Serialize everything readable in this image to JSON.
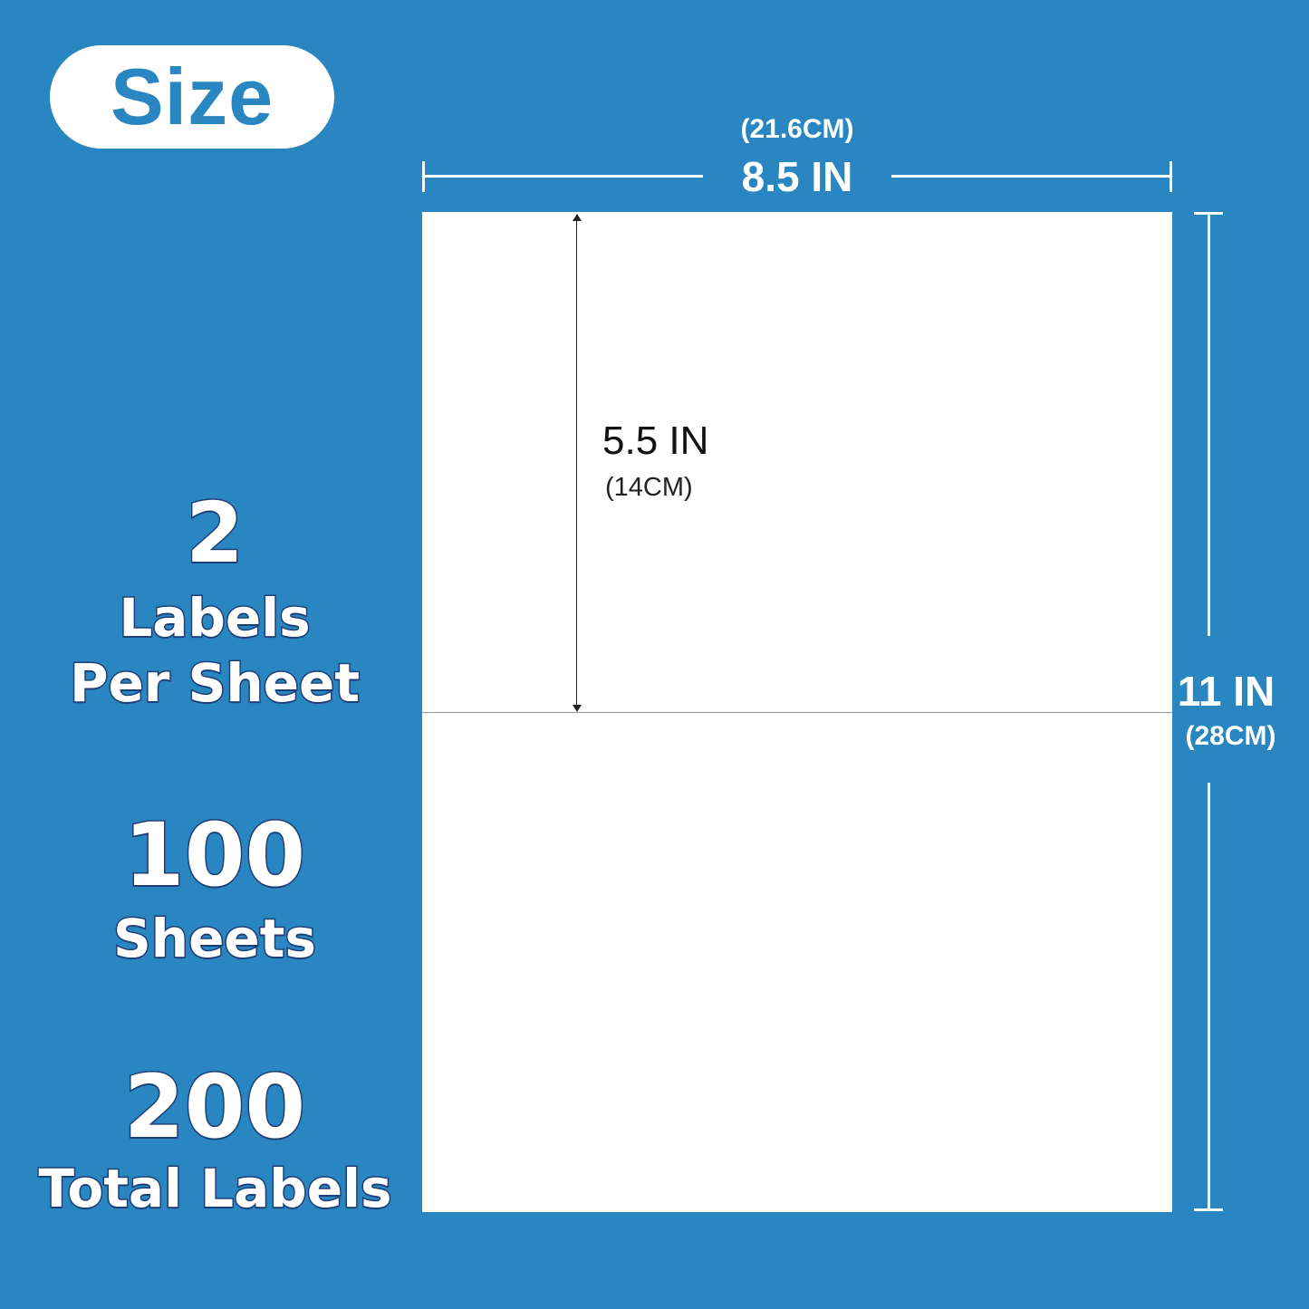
{
  "title": "Size",
  "width": {
    "inches": "8.5 IN",
    "cm": "(21.6CM)"
  },
  "height": {
    "inches": "11 IN",
    "cm": "(28CM)"
  },
  "label_height": {
    "inches": "5.5 IN",
    "cm": "(14CM)"
  },
  "stats": [
    {
      "number": "2",
      "lines": [
        "Labels",
        "Per Sheet"
      ]
    },
    {
      "number": "100",
      "lines": [
        "Sheets"
      ]
    },
    {
      "number": "200",
      "lines": [
        "Total Labels"
      ]
    }
  ],
  "colors": {
    "background": "#2a86c0",
    "text_outline": "#1d3f78"
  }
}
